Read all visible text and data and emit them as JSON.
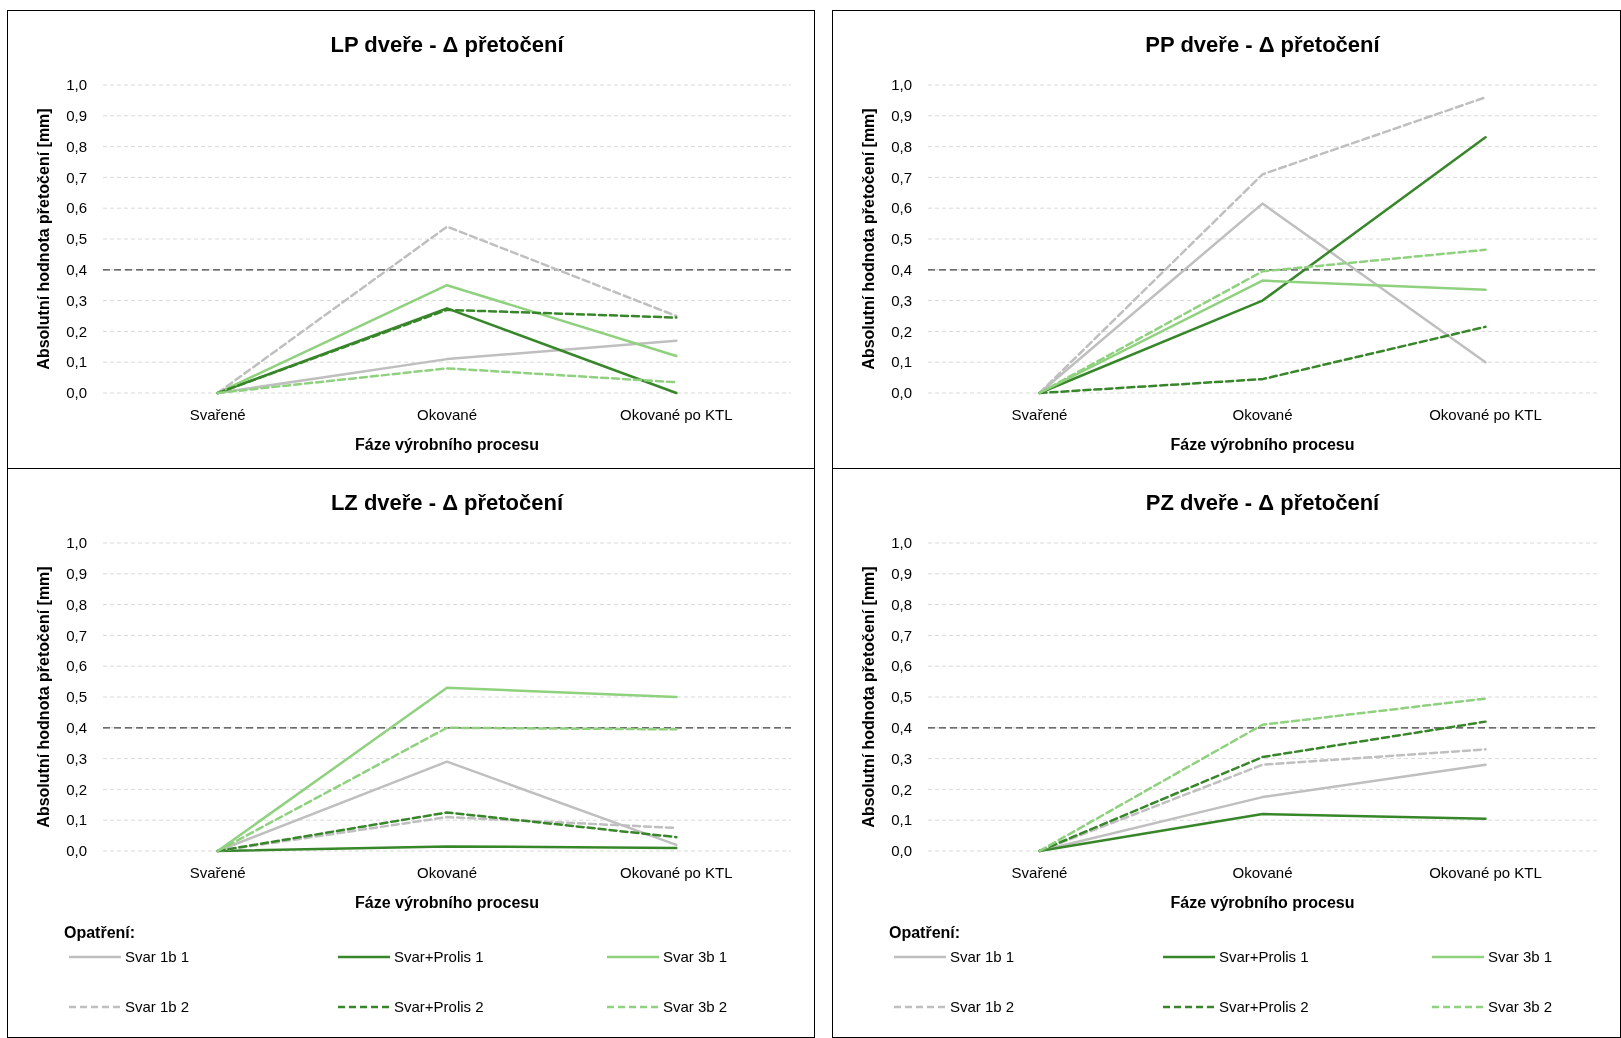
{
  "chart_data": [
    {
      "type": "line",
      "title": "LP dveře - Δ přetočení",
      "xlabel": "Fáze výrobního procesu",
      "ylabel": "Absolutní hodnota přetočení [mm]",
      "categories": [
        "Svařené",
        "Okované",
        "Okované po KTL"
      ],
      "ylim": [
        0,
        1
      ],
      "yticks": [
        {
          "value": 0,
          "label": "0,0"
        },
        {
          "value": 0.1,
          "label": "0,1"
        },
        {
          "value": 0.2,
          "label": "0,2"
        },
        {
          "value": 0.3,
          "label": "0,3"
        },
        {
          "value": 0.4,
          "label": "0,4"
        },
        {
          "value": 0.5,
          "label": "0,5"
        },
        {
          "value": 0.6,
          "label": "0,6"
        },
        {
          "value": 0.7,
          "label": "0,7"
        },
        {
          "value": 0.8,
          "label": "0,8"
        },
        {
          "value": 0.9,
          "label": "0,9"
        },
        {
          "value": 1,
          "label": "1,0"
        }
      ],
      "grid": "y",
      "legend": false,
      "marker": "none",
      "ref_lines": [
        {
          "axis": "y",
          "value": 0.4,
          "color": "#404040",
          "line_style": "dashed"
        }
      ],
      "series": [
        {
          "color": "#bfbfbf",
          "line_style": "solid",
          "values": [
            0,
            0.11,
            0.17
          ]
        },
        {
          "color": "#38862a",
          "line_style": "solid",
          "values": [
            0,
            0.275,
            0.0
          ]
        },
        {
          "color": "#8fd17e",
          "line_style": "solid",
          "values": [
            0,
            0.35,
            0.12
          ]
        },
        {
          "color": "#bfbfbf",
          "line_style": "dashed",
          "values": [
            0,
            0.54,
            0.25
          ]
        },
        {
          "color": "#38862a",
          "line_style": "dashed",
          "values": [
            0,
            0.27,
            0.245
          ]
        },
        {
          "color": "#8fd17e",
          "line_style": "dashed",
          "values": [
            0,
            0.08,
            0.035
          ]
        }
      ]
    },
    {
      "type": "line",
      "title": "PP dveře - Δ přetočení",
      "xlabel": "Fáze výrobního procesu",
      "ylabel": "Absolutní hodnota přetočení [mm]",
      "categories": [
        "Svařené",
        "Okované",
        "Okované po KTL"
      ],
      "ylim": [
        0,
        1
      ],
      "yticks": [
        {
          "value": 0,
          "label": "0,0"
        },
        {
          "value": 0.1,
          "label": "0,1"
        },
        {
          "value": 0.2,
          "label": "0,2"
        },
        {
          "value": 0.3,
          "label": "0,3"
        },
        {
          "value": 0.4,
          "label": "0,4"
        },
        {
          "value": 0.5,
          "label": "0,5"
        },
        {
          "value": 0.6,
          "label": "0,6"
        },
        {
          "value": 0.7,
          "label": "0,7"
        },
        {
          "value": 0.8,
          "label": "0,8"
        },
        {
          "value": 0.9,
          "label": "0,9"
        },
        {
          "value": 1,
          "label": "1,0"
        }
      ],
      "grid": "y",
      "legend": false,
      "marker": "none",
      "ref_lines": [
        {
          "axis": "y",
          "value": 0.4,
          "color": "#404040",
          "line_style": "dashed"
        }
      ],
      "series": [
        {
          "color": "#bfbfbf",
          "line_style": "solid",
          "values": [
            0,
            0.615,
            0.1
          ]
        },
        {
          "color": "#38862a",
          "line_style": "solid",
          "values": [
            0,
            0.3,
            0.83
          ]
        },
        {
          "color": "#8fd17e",
          "line_style": "solid",
          "values": [
            0,
            0.365,
            0.335
          ]
        },
        {
          "color": "#bfbfbf",
          "line_style": "dashed",
          "values": [
            0,
            0.71,
            0.96
          ]
        },
        {
          "color": "#38862a",
          "line_style": "dashed",
          "values": [
            0,
            0.045,
            0.215
          ]
        },
        {
          "color": "#8fd17e",
          "line_style": "dashed",
          "values": [
            0,
            0.395,
            0.465
          ]
        }
      ]
    },
    {
      "type": "line",
      "title": "LZ dveře - Δ přetočení",
      "xlabel": "Fáze výrobního procesu",
      "ylabel": "Absolutní hodnota přetočení [mm]",
      "categories": [
        "Svařené",
        "Okované",
        "Okované po KTL"
      ],
      "ylim": [
        0,
        1
      ],
      "yticks": [
        {
          "value": 0,
          "label": "0,0"
        },
        {
          "value": 0.1,
          "label": "0,1"
        },
        {
          "value": 0.2,
          "label": "0,2"
        },
        {
          "value": 0.3,
          "label": "0,3"
        },
        {
          "value": 0.4,
          "label": "0,4"
        },
        {
          "value": 0.5,
          "label": "0,5"
        },
        {
          "value": 0.6,
          "label": "0,6"
        },
        {
          "value": 0.7,
          "label": "0,7"
        },
        {
          "value": 0.8,
          "label": "0,8"
        },
        {
          "value": 0.9,
          "label": "0,9"
        },
        {
          "value": 1,
          "label": "1,0"
        }
      ],
      "grid": "y",
      "legend": "bottom",
      "legend_title": "Opatření:",
      "marker": "none",
      "ref_lines": [
        {
          "axis": "y",
          "value": 0.4,
          "color": "#404040",
          "line_style": "dashed"
        }
      ],
      "series": [
        {
          "name": "Svar 1b 1",
          "color": "#bfbfbf",
          "line_style": "solid",
          "values": [
            0,
            0.29,
            0.02
          ]
        },
        {
          "name": "Svar+Prolis 1",
          "color": "#38862a",
          "line_style": "solid",
          "values": [
            0,
            0.015,
            0.01
          ]
        },
        {
          "name": "Svar 3b 1",
          "color": "#8fd17e",
          "line_style": "solid",
          "values": [
            0,
            0.53,
            0.5
          ]
        },
        {
          "name": "Svar 1b 2",
          "color": "#bfbfbf",
          "line_style": "dashed",
          "values": [
            0,
            0.11,
            0.075
          ]
        },
        {
          "name": "Svar+Prolis 2",
          "color": "#38862a",
          "line_style": "dashed",
          "values": [
            0,
            0.125,
            0.045
          ]
        },
        {
          "name": "Svar 3b 2",
          "color": "#8fd17e",
          "line_style": "dashed",
          "values": [
            0,
            0.4,
            0.395
          ]
        }
      ]
    },
    {
      "type": "line",
      "title": "PZ dveře - Δ přetočení",
      "xlabel": "Fáze výrobního procesu",
      "ylabel": "Absolutní hodnota přetočení [mm]",
      "categories": [
        "Svařené",
        "Okované",
        "Okované po KTL"
      ],
      "ylim": [
        0,
        1
      ],
      "yticks": [
        {
          "value": 0,
          "label": "0,0"
        },
        {
          "value": 0.1,
          "label": "0,1"
        },
        {
          "value": 0.2,
          "label": "0,2"
        },
        {
          "value": 0.3,
          "label": "0,3"
        },
        {
          "value": 0.4,
          "label": "0,4"
        },
        {
          "value": 0.5,
          "label": "0,5"
        },
        {
          "value": 0.6,
          "label": "0,6"
        },
        {
          "value": 0.7,
          "label": "0,7"
        },
        {
          "value": 0.8,
          "label": "0,8"
        },
        {
          "value": 0.9,
          "label": "0,9"
        },
        {
          "value": 1,
          "label": "1,0"
        }
      ],
      "grid": "y",
      "legend": "bottom",
      "legend_title": "Opatření:",
      "marker": "none",
      "ref_lines": [
        {
          "axis": "y",
          "value": 0.4,
          "color": "#404040",
          "line_style": "dashed"
        }
      ],
      "series": [
        {
          "name": "Svar 1b 1",
          "color": "#bfbfbf",
          "line_style": "solid",
          "values": [
            0,
            0.175,
            0.28
          ]
        },
        {
          "name": "Svar+Prolis 1",
          "color": "#38862a",
          "line_style": "solid",
          "values": [
            0,
            0.12,
            0.105
          ]
        },
        {
          "name": "Svar 3b 1",
          "color": "#8fd17e",
          "line_style": "solid",
          "values": [
            null,
            null,
            null
          ]
        },
        {
          "name": "Svar 1b 2",
          "color": "#bfbfbf",
          "line_style": "dashed",
          "values": [
            0,
            0.28,
            0.33
          ]
        },
        {
          "name": "Svar+Prolis 2",
          "color": "#38862a",
          "line_style": "dashed",
          "values": [
            0,
            0.305,
            0.42
          ]
        },
        {
          "name": "Svar 3b 2",
          "color": "#8fd17e",
          "line_style": "dashed",
          "values": [
            0,
            0.41,
            0.495
          ]
        }
      ]
    }
  ]
}
